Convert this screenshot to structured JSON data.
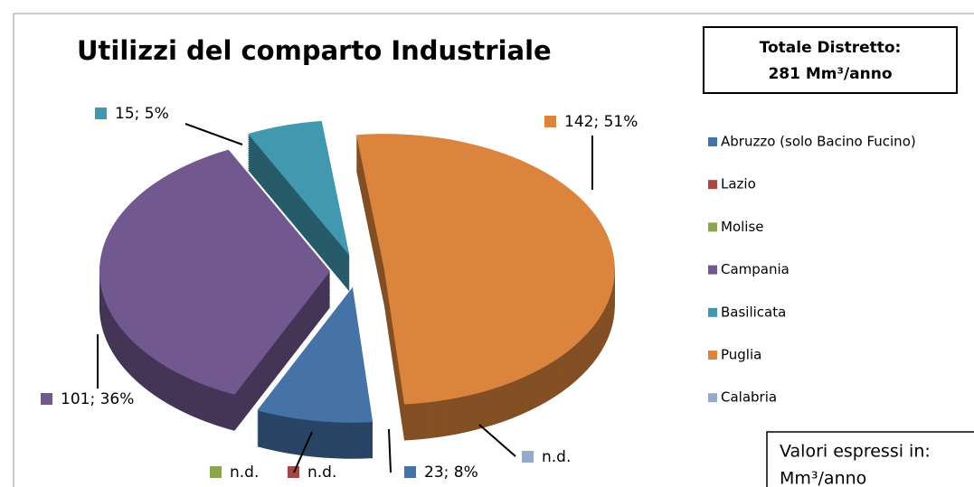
{
  "chart_data": {
    "type": "pie",
    "title": "Utilizzi del comparto Industriale",
    "categories": [
      "Abruzzo (solo Bacino Fucino)",
      "Lazio",
      "Molise",
      "Campania",
      "Basilicata",
      "Puglia",
      "Calabria"
    ],
    "values": [
      23,
      null,
      null,
      101,
      15,
      142,
      null
    ],
    "value_labels": [
      "23; 8%",
      "n.d.",
      "n.d.",
      "101; 36%",
      "15; 5%",
      "142; 51%",
      "n.d."
    ],
    "colors": [
      "#4572a7",
      "#aa4643",
      "#89a54e",
      "#71588f",
      "#4198af",
      "#db843d",
      "#93a9cf"
    ],
    "legend": "right",
    "annotations": [
      "Totale Distretto:",
      "281 Mm³/anno",
      "Valori espressi in:",
      "Mm³/anno"
    ]
  }
}
